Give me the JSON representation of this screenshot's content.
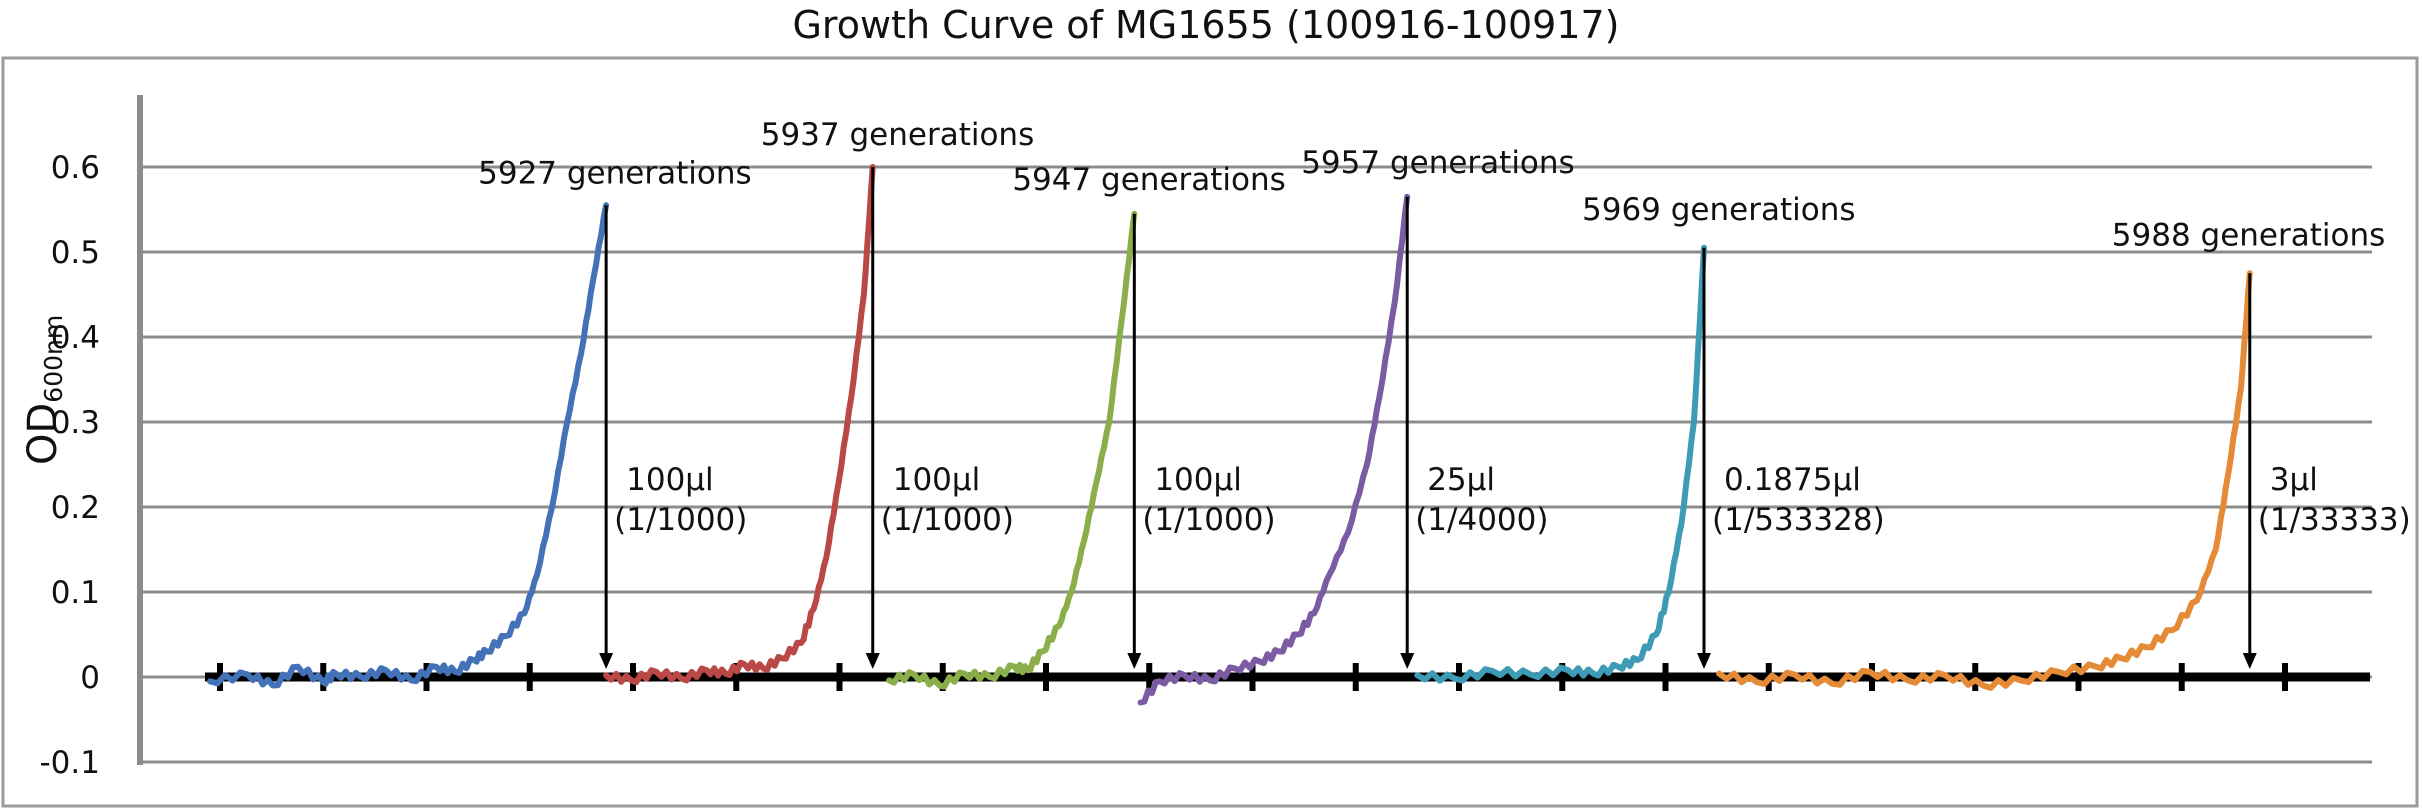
{
  "chart_data": {
    "type": "line",
    "title": "Growth Curve of MG1655 (100916-100917)",
    "ylabel": "OD",
    "ylabel_subscript": "600nm",
    "xlabel": "",
    "ylim": [
      -0.1,
      0.65
    ],
    "yticks": [
      "0.6",
      "0.5",
      "0.4",
      "0.3",
      "0.2",
      "0.1",
      "0",
      "-0.1"
    ],
    "ytick_values": [
      0.6,
      0.5,
      0.4,
      0.3,
      0.2,
      0.1,
      0,
      -0.1
    ],
    "x_ticks": 21,
    "grid": true,
    "legend": "none",
    "series": [
      {
        "color": "#4472b8",
        "x": [
          0.0,
          0.3,
          0.5,
          0.7,
          0.9,
          1.0,
          1.2,
          1.4,
          1.6,
          1.8,
          1.95,
          2.1,
          2.2,
          2.35,
          2.5,
          2.6,
          2.72,
          2.84,
          2.95,
          3.05,
          3.15
        ],
        "y": [
          -0.005,
          0.003,
          -0.01,
          0.012,
          -0.006,
          0.004,
          0.0,
          0.008,
          -0.004,
          0.012,
          0.006,
          0.02,
          0.03,
          0.048,
          0.075,
          0.12,
          0.2,
          0.3,
          0.38,
          0.47,
          0.555
        ]
      },
      {
        "color": "#b94846",
        "x": [
          3.15,
          3.35,
          3.55,
          3.75,
          3.95,
          4.1,
          4.25,
          4.4,
          4.55,
          4.7,
          4.8,
          4.9,
          5.0,
          5.1,
          5.2,
          5.27
        ],
        "y": [
          0.002,
          -0.004,
          0.006,
          -0.002,
          0.008,
          0.004,
          0.015,
          0.01,
          0.022,
          0.04,
          0.08,
          0.14,
          0.23,
          0.33,
          0.45,
          0.6
        ]
      },
      {
        "color": "#8aaf4a",
        "x": [
          5.4,
          5.6,
          5.8,
          6.0,
          6.2,
          6.4,
          6.5,
          6.62,
          6.75,
          6.85,
          6.95,
          7.05,
          7.15,
          7.25,
          7.35
        ],
        "y": [
          -0.004,
          0.003,
          -0.01,
          0.004,
          0.0,
          0.012,
          0.008,
          0.03,
          0.06,
          0.1,
          0.16,
          0.23,
          0.3,
          0.42,
          0.545
        ]
      },
      {
        "color": "#7b5ca3",
        "x": [
          7.4,
          7.55,
          7.75,
          7.95,
          8.15,
          8.35,
          8.5,
          8.65,
          8.78,
          8.9,
          9.05,
          9.2,
          9.3,
          9.42,
          9.52
        ],
        "y": [
          -0.03,
          -0.005,
          0.002,
          -0.004,
          0.01,
          0.018,
          0.03,
          0.05,
          0.075,
          0.12,
          0.17,
          0.25,
          0.33,
          0.44,
          0.565
        ]
      },
      {
        "color": "#3e9bb5",
        "x": [
          9.6,
          9.9,
          10.2,
          10.5,
          10.8,
          11.0,
          11.2,
          11.35,
          11.5,
          11.6,
          11.7,
          11.8,
          11.88
        ],
        "y": [
          0.002,
          -0.002,
          0.007,
          0.003,
          0.008,
          0.004,
          0.012,
          0.02,
          0.05,
          0.1,
          0.18,
          0.3,
          0.505
        ]
      },
      {
        "color": "#e58a36",
        "x": [
          12.0,
          12.3,
          12.6,
          12.9,
          13.2,
          13.5,
          13.8,
          14.1,
          14.4,
          14.7,
          15.0,
          15.2,
          15.4,
          15.6,
          15.8,
          15.95,
          16.05,
          16.15,
          16.22
        ],
        "y": [
          0.004,
          -0.006,
          0.003,
          -0.008,
          0.006,
          -0.004,
          0.002,
          -0.01,
          -0.004,
          0.006,
          0.012,
          0.022,
          0.035,
          0.055,
          0.09,
          0.15,
          0.24,
          0.34,
          0.475
        ]
      }
    ],
    "annotations": [
      {
        "label": "5927 generations",
        "vol": "100μl",
        "dil": "(1/1000)",
        "x": 3.15,
        "y_top": 0.555
      },
      {
        "label": "5937 generations",
        "vol": "100μl",
        "dil": "(1/1000)",
        "x": 5.27,
        "y_top": 0.6
      },
      {
        "label": "5947 generations",
        "vol": "100μl",
        "dil": "(1/1000)",
        "x": 7.35,
        "y_top": 0.545
      },
      {
        "label": "5957 generations",
        "vol": "25μl",
        "dil": "(1/4000)",
        "x": 9.52,
        "y_top": 0.565
      },
      {
        "label": "5969 generations",
        "vol": "0.1875μl",
        "dil": "(1/533328)",
        "x": 11.88,
        "y_top": 0.505
      },
      {
        "label": "5988 generations",
        "vol": "3μl",
        "dil": "(1/33333)",
        "x": 16.22,
        "y_top": 0.475
      }
    ]
  }
}
